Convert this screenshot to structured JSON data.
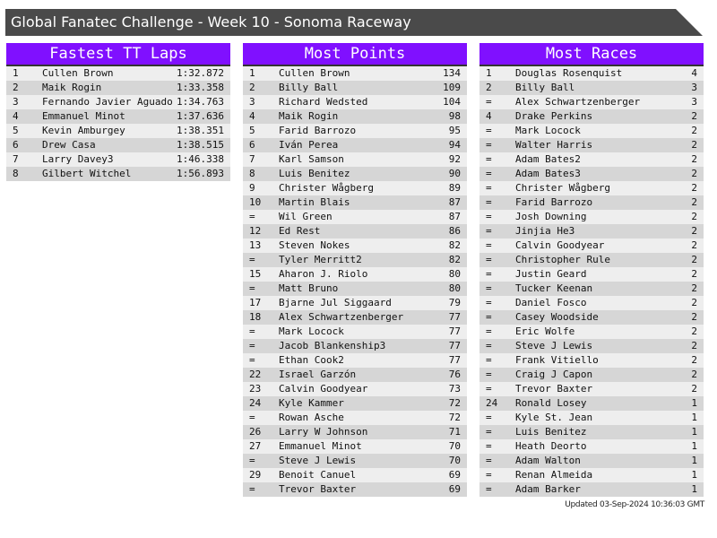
{
  "title": "Global Fanatec Challenge - Week 10 - Sonoma Raceway",
  "colors": {
    "header": "#8010ff",
    "titlebar": "#4a4a4a"
  },
  "panels": [
    {
      "heading": "Fastest TT Laps",
      "rows": [
        [
          "1",
          "Cullen Brown",
          "1:32.872"
        ],
        [
          "2",
          "Maik Rogin",
          "1:33.358"
        ],
        [
          "3",
          "Fernando Javier Aguado",
          "1:34.763"
        ],
        [
          "4",
          "Emmanuel Minot",
          "1:37.636"
        ],
        [
          "5",
          "Kevin Amburgey",
          "1:38.351"
        ],
        [
          "6",
          "Drew Casa",
          "1:38.515"
        ],
        [
          "7",
          "Larry Davey3",
          "1:46.338"
        ],
        [
          "8",
          "Gilbert Witchel",
          "1:56.893"
        ]
      ]
    },
    {
      "heading": "Most Points",
      "rows": [
        [
          "1",
          "Cullen Brown",
          "134"
        ],
        [
          "2",
          "Billy Ball",
          "109"
        ],
        [
          "3",
          "Richard Wedsted",
          "104"
        ],
        [
          "4",
          "Maik Rogin",
          "98"
        ],
        [
          "5",
          "Farid Barrozo",
          "95"
        ],
        [
          "6",
          "Iván Perea",
          "94"
        ],
        [
          "7",
          "Karl Samson",
          "92"
        ],
        [
          "8",
          "Luis Benitez",
          "90"
        ],
        [
          "9",
          "Christer Wågberg",
          "89"
        ],
        [
          "10",
          "Martin Blais",
          "87"
        ],
        [
          "=",
          "Wil Green",
          "87"
        ],
        [
          "12",
          "Ed Rest",
          "86"
        ],
        [
          "13",
          "Steven Nokes",
          "82"
        ],
        [
          "=",
          "Tyler Merritt2",
          "82"
        ],
        [
          "15",
          "Aharon J. Riolo",
          "80"
        ],
        [
          "=",
          "Matt Bruno",
          "80"
        ],
        [
          "17",
          "Bjarne Jul Siggaard",
          "79"
        ],
        [
          "18",
          "Alex Schwartzenberger",
          "77"
        ],
        [
          "=",
          "Mark Locock",
          "77"
        ],
        [
          "=",
          "Jacob Blankenship3",
          "77"
        ],
        [
          "=",
          "Ethan Cook2",
          "77"
        ],
        [
          "22",
          "Israel Garzón",
          "76"
        ],
        [
          "23",
          "Calvin Goodyear",
          "73"
        ],
        [
          "24",
          "Kyle Kammer",
          "72"
        ],
        [
          "=",
          "Rowan Asche",
          "72"
        ],
        [
          "26",
          "Larry W Johnson",
          "71"
        ],
        [
          "27",
          "Emmanuel Minot",
          "70"
        ],
        [
          "=",
          "Steve J Lewis",
          "70"
        ],
        [
          "29",
          "Benoit Canuel",
          "69"
        ],
        [
          "=",
          "Trevor Baxter",
          "69"
        ]
      ]
    },
    {
      "heading": "Most Races",
      "rows": [
        [
          "1",
          "Douglas Rosenquist",
          "4"
        ],
        [
          "2",
          "Billy Ball",
          "3"
        ],
        [
          "=",
          "Alex Schwartzenberger",
          "3"
        ],
        [
          "4",
          "Drake Perkins",
          "2"
        ],
        [
          "=",
          "Mark Locock",
          "2"
        ],
        [
          "=",
          "Walter Harris",
          "2"
        ],
        [
          "=",
          "Adam Bates2",
          "2"
        ],
        [
          "=",
          "Adam Bates3",
          "2"
        ],
        [
          "=",
          "Christer Wågberg",
          "2"
        ],
        [
          "=",
          "Farid Barrozo",
          "2"
        ],
        [
          "=",
          "Josh Downing",
          "2"
        ],
        [
          "=",
          "Jinjia He3",
          "2"
        ],
        [
          "=",
          "Calvin Goodyear",
          "2"
        ],
        [
          "=",
          "Christopher Rule",
          "2"
        ],
        [
          "=",
          "Justin Geard",
          "2"
        ],
        [
          "=",
          "Tucker Keenan",
          "2"
        ],
        [
          "=",
          "Daniel Fosco",
          "2"
        ],
        [
          "=",
          "Casey Woodside",
          "2"
        ],
        [
          "=",
          "Eric Wolfe",
          "2"
        ],
        [
          "=",
          "Steve J Lewis",
          "2"
        ],
        [
          "=",
          "Frank Vitiello",
          "2"
        ],
        [
          "=",
          "Craig J Capon",
          "2"
        ],
        [
          "=",
          "Trevor Baxter",
          "2"
        ],
        [
          "24",
          "Ronald Losey",
          "1"
        ],
        [
          "=",
          "Kyle St. Jean",
          "1"
        ],
        [
          "=",
          "Luis Benitez",
          "1"
        ],
        [
          "=",
          "Heath Deorto",
          "1"
        ],
        [
          "=",
          "Adam Walton",
          "1"
        ],
        [
          "=",
          "Renan Almeida",
          "1"
        ],
        [
          "=",
          "Adam Barker",
          "1"
        ]
      ]
    }
  ],
  "footer": "Updated 03-Sep-2024 10:36:03 GMT"
}
